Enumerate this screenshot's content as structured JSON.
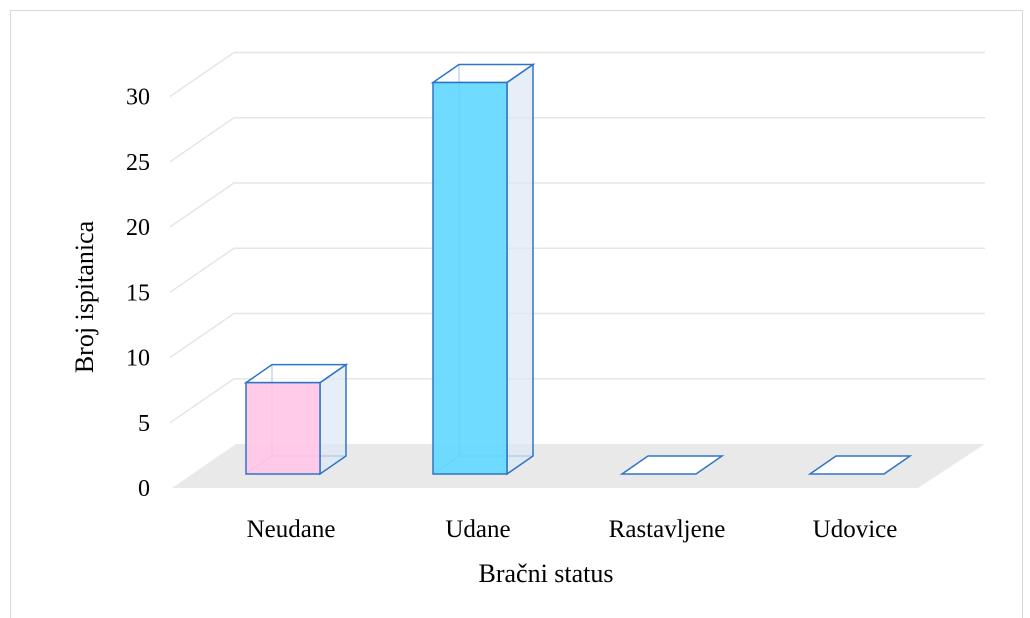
{
  "chart_data": {
    "type": "bar",
    "style": "3d-column",
    "categories": [
      "Neudane",
      "Udane",
      "Rastavljene",
      "Udovice"
    ],
    "values": [
      7,
      30,
      0,
      0
    ],
    "bar_colors": [
      "#ffc8e8",
      "#66d9ff",
      "#ffffff",
      "#ffffff"
    ],
    "edge_color": "#2e75c6",
    "floor_color": "#e9e9e9",
    "gridline_color": "#e6e6e6",
    "xlabel": "Bračni status",
    "ylabel": "Broj ispitanica",
    "yticks": [
      0,
      5,
      10,
      15,
      20,
      25,
      30
    ],
    "ylim": [
      0,
      32
    ],
    "grid": true
  }
}
